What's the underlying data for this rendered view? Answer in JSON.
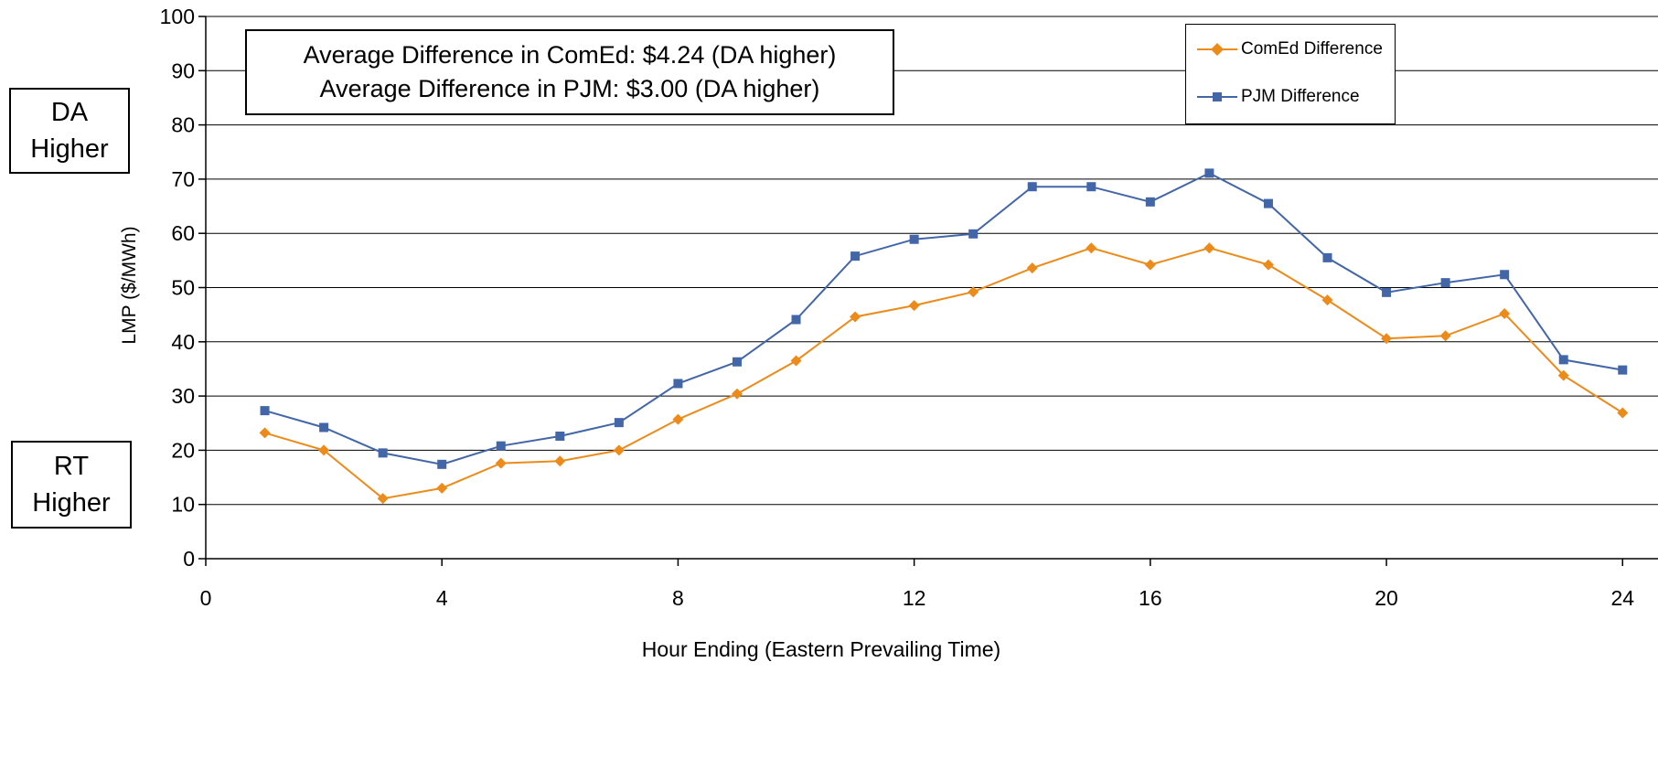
{
  "chart_data": {
    "type": "line",
    "xlabel": "Hour Ending (Eastern Prevailing Time)",
    "ylabel": "LMP ($/MWh)",
    "xlim": [
      0,
      24
    ],
    "ylim": [
      0,
      100
    ],
    "x_ticks": [
      0,
      4,
      8,
      12,
      16,
      20,
      24
    ],
    "y_ticks": [
      0,
      10,
      20,
      30,
      40,
      50,
      60,
      70,
      80,
      90,
      100
    ],
    "grid": "horizontal",
    "legend_position": "top-right",
    "x": [
      1,
      2,
      3,
      4,
      5,
      6,
      7,
      8,
      9,
      10,
      11,
      12,
      13,
      14,
      15,
      16,
      17,
      18,
      19,
      20,
      21,
      22,
      23,
      24
    ],
    "series": [
      {
        "name": "ComEd Difference",
        "color": "#ED8B1A",
        "marker": "diamond",
        "values": [
          23.2,
          20.0,
          11.1,
          13.0,
          17.6,
          18.0,
          20.0,
          25.7,
          30.4,
          36.5,
          44.6,
          46.7,
          49.2,
          53.6,
          57.3,
          54.2,
          57.3,
          54.2,
          47.7,
          40.6,
          41.1,
          45.2,
          33.8,
          26.9
        ]
      },
      {
        "name": "PJM Difference",
        "color": "#4266A8",
        "marker": "square",
        "values": [
          27.3,
          24.2,
          19.5,
          17.4,
          20.8,
          22.6,
          25.1,
          32.3,
          36.3,
          44.1,
          55.8,
          58.9,
          59.9,
          68.6,
          68.6,
          65.8,
          71.1,
          65.5,
          55.5,
          49.1,
          50.9,
          52.4,
          36.7,
          34.8
        ]
      }
    ],
    "annotations": [
      "Average Difference in ComEd: $4.24 (DA higher)",
      "Average Difference in PJM: $3.00 (DA higher)"
    ]
  },
  "side_labels": {
    "da": [
      "DA",
      "Higher"
    ],
    "rt": [
      "RT",
      "Higher"
    ]
  }
}
